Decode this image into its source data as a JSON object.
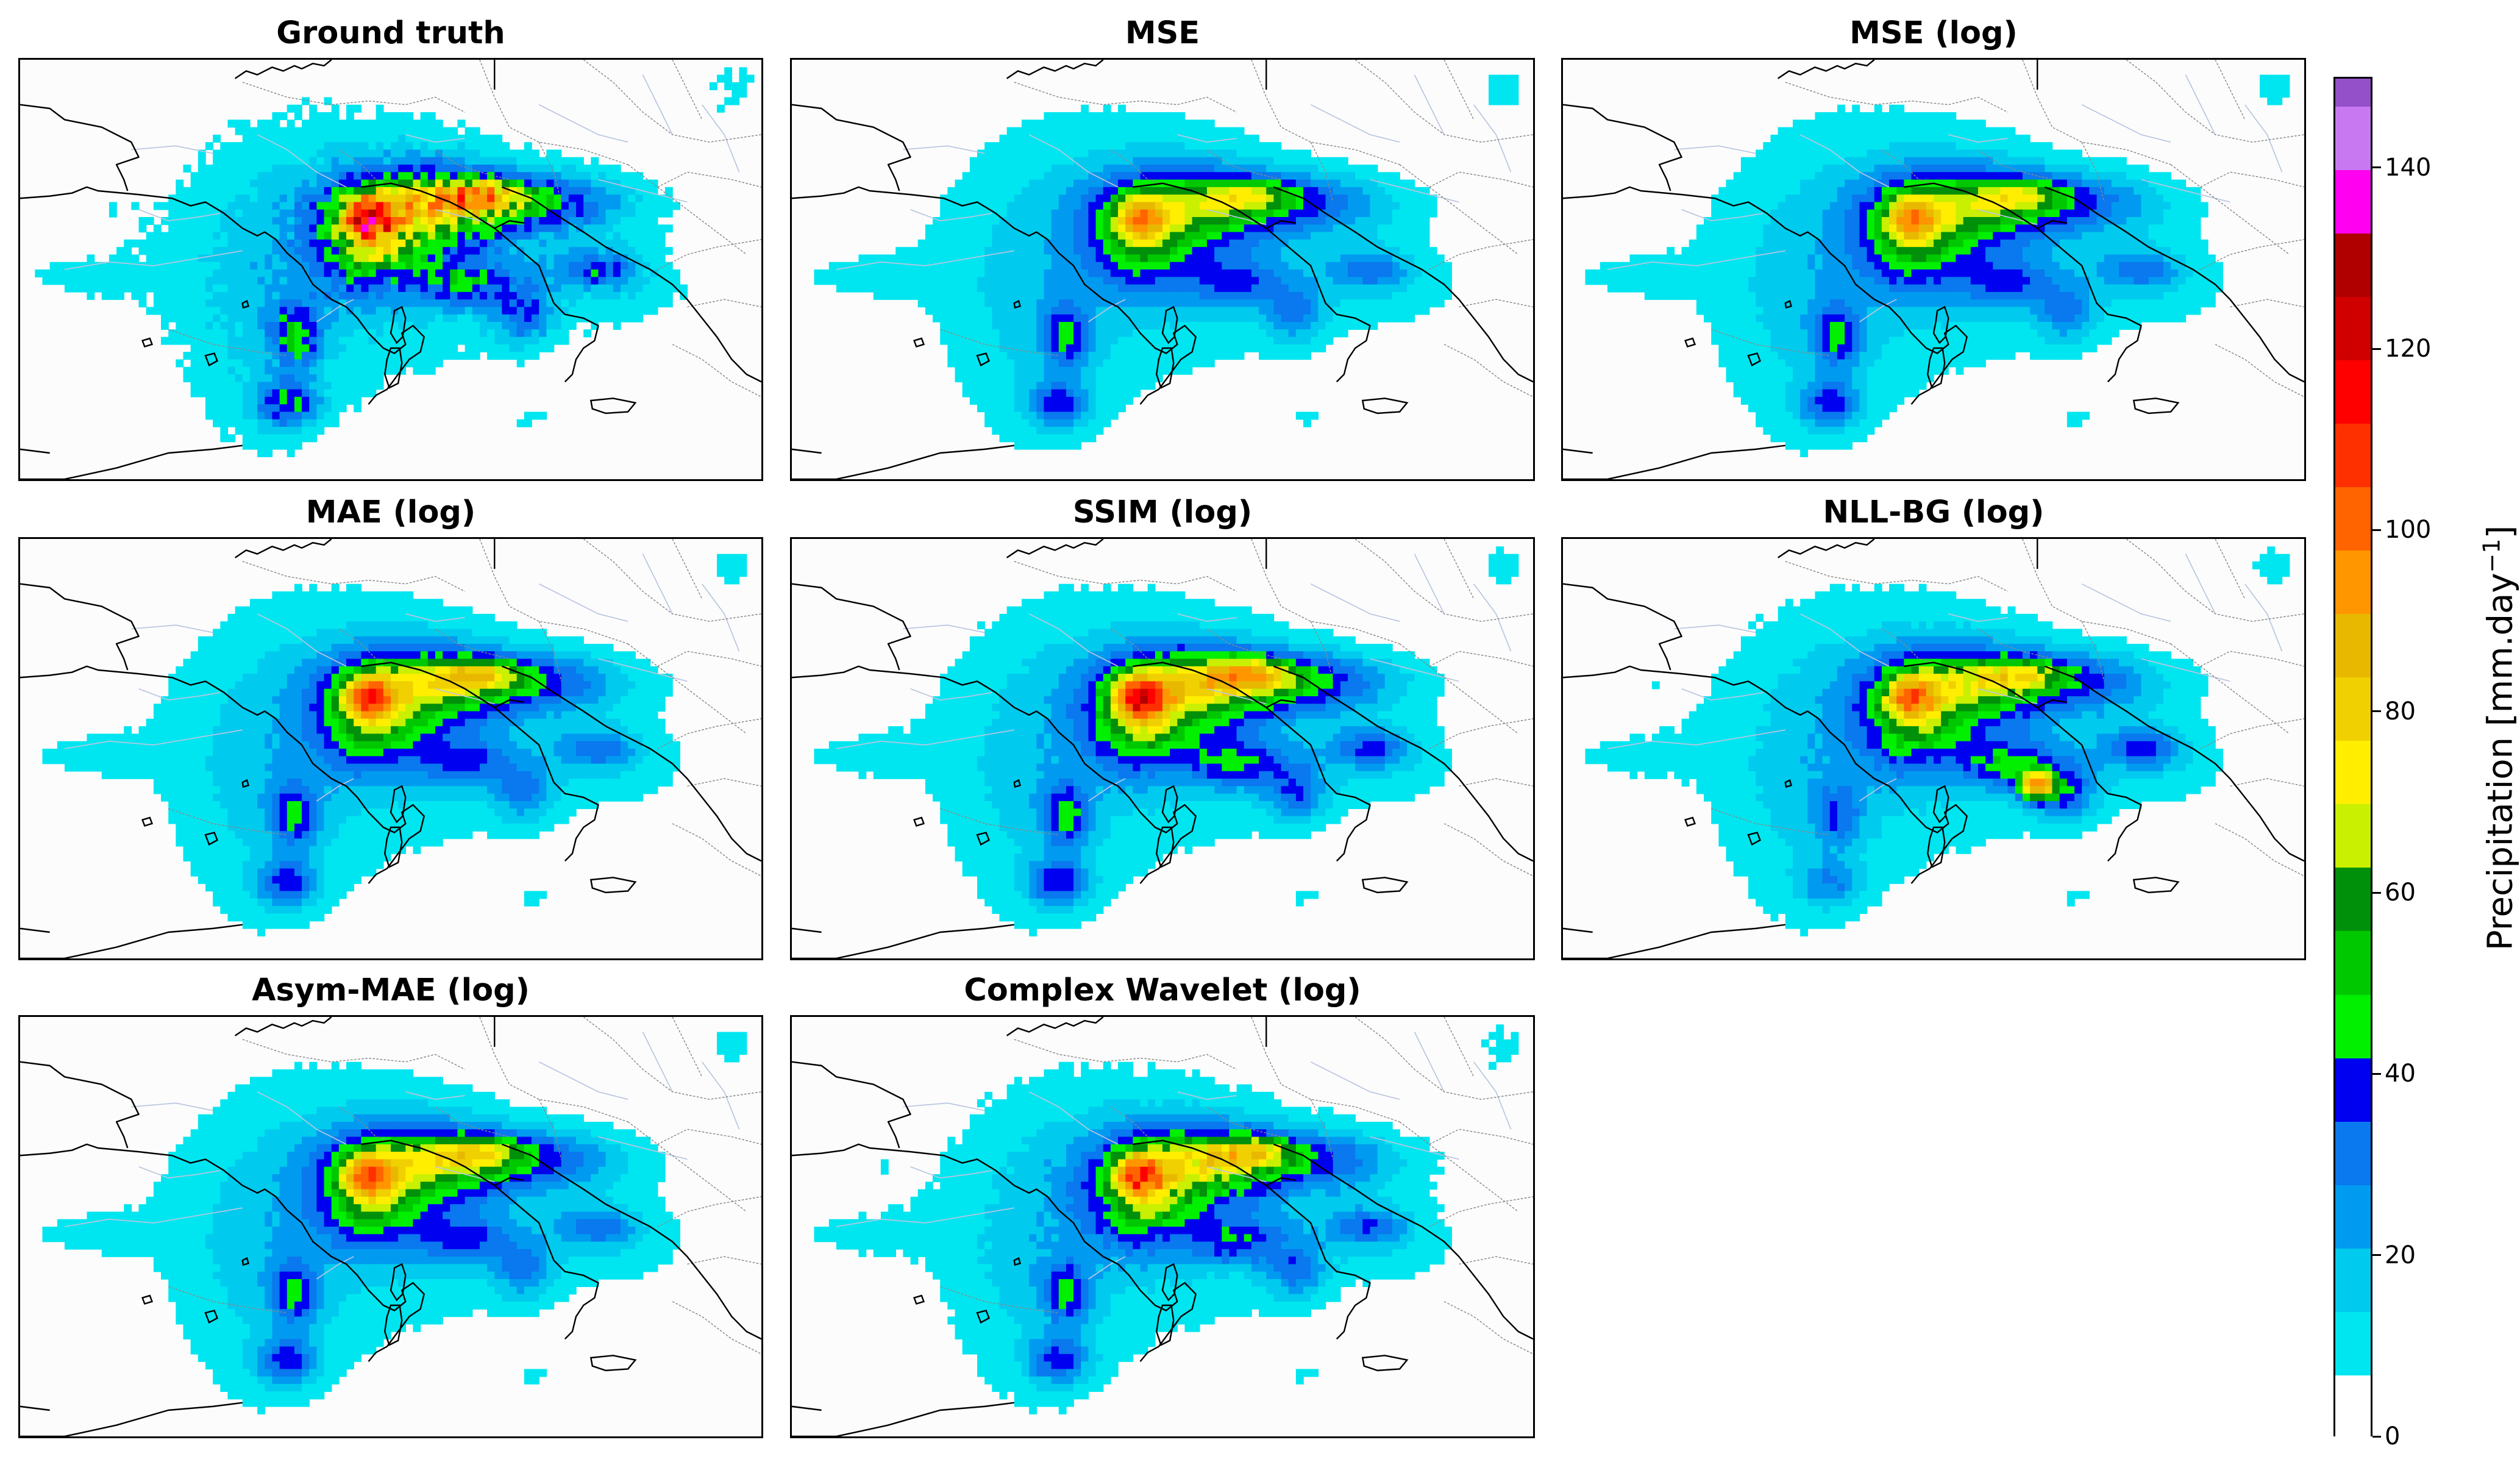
{
  "figure": {
    "panels": [
      {
        "title": "Ground truth",
        "variant": "truth"
      },
      {
        "title": "MSE",
        "variant": "mse"
      },
      {
        "title": "MSE (log)",
        "variant": "mselog"
      },
      {
        "title": "MAE (log)",
        "variant": "mae"
      },
      {
        "title": "SSIM (log)",
        "variant": "ssim"
      },
      {
        "title": "NLL-BG (log)",
        "variant": "nll"
      },
      {
        "title": "Asym-MAE (log)",
        "variant": "asym"
      },
      {
        "title": "Complex Wavelet (log)",
        "variant": "wavelet"
      }
    ]
  },
  "colorbar": {
    "label": "Precipitation [mm.day",
    "label_superscript": "−1",
    "label_close": "]",
    "range": [
      0,
      150
    ],
    "ticks": [
      "0",
      "20",
      "40",
      "60",
      "80",
      "100",
      "120",
      "140"
    ],
    "tick_values": [
      0,
      20,
      40,
      60,
      80,
      100,
      120,
      140
    ],
    "levels": [
      {
        "from": 0,
        "to": 7,
        "color": "#ffffff"
      },
      {
        "from": 7,
        "to": 14,
        "color": "#00e6f0"
      },
      {
        "from": 14,
        "to": 21,
        "color": "#00cbee"
      },
      {
        "from": 21,
        "to": 28,
        "color": "#009bf0"
      },
      {
        "from": 28,
        "to": 35,
        "color": "#0a78ee"
      },
      {
        "from": 35,
        "to": 42,
        "color": "#0000f0"
      },
      {
        "from": 42,
        "to": 49,
        "color": "#00f000"
      },
      {
        "from": 49,
        "to": 56,
        "color": "#00c800"
      },
      {
        "from": 56,
        "to": 63,
        "color": "#00900a"
      },
      {
        "from": 63,
        "to": 70,
        "color": "#c8f000"
      },
      {
        "from": 70,
        "to": 77,
        "color": "#ffee00"
      },
      {
        "from": 77,
        "to": 84,
        "color": "#f0d000"
      },
      {
        "from": 84,
        "to": 91,
        "color": "#e8b800"
      },
      {
        "from": 91,
        "to": 98,
        "color": "#ff9600"
      },
      {
        "from": 98,
        "to": 105,
        "color": "#ff6400"
      },
      {
        "from": 105,
        "to": 112,
        "color": "#ff3000"
      },
      {
        "from": 112,
        "to": 119,
        "color": "#ff0000"
      },
      {
        "from": 119,
        "to": 126,
        "color": "#d00000"
      },
      {
        "from": 126,
        "to": 133,
        "color": "#b00000"
      },
      {
        "from": 133,
        "to": 140,
        "color": "#ff00f0"
      },
      {
        "from": 140,
        "to": 147,
        "color": "#c878f0"
      },
      {
        "from": 147,
        "to": 150,
        "color": "#9450c8"
      }
    ]
  }
}
